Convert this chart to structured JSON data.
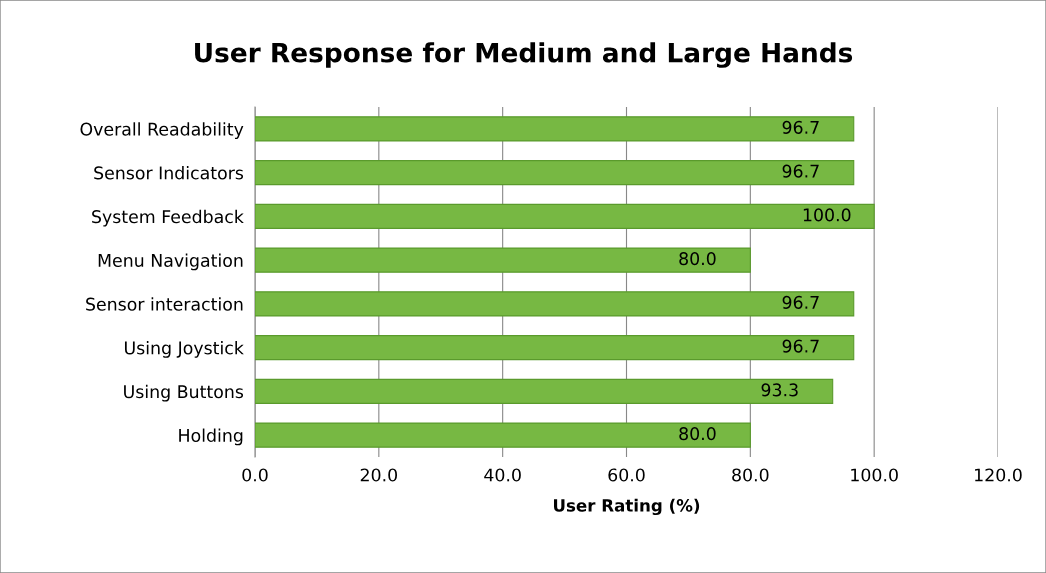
{
  "chart_data": {
    "type": "bar",
    "orientation": "horizontal",
    "title": "User Response for Medium and Large Hands",
    "xlabel": "User Rating (%)",
    "categories": [
      "Overall Readability",
      "Sensor Indicators",
      "System Feedback",
      "Menu Navigation",
      "Sensor interaction",
      "Using Joystick",
      "Using Buttons",
      "Holding"
    ],
    "values": [
      96.7,
      96.7,
      100,
      80,
      96.7,
      96.7,
      93.3,
      80
    ],
    "value_labels": [
      "96.7",
      "96.7",
      "100.0",
      "80.0",
      "96.7",
      "96.7",
      "93.3",
      "80.0"
    ],
    "color": "#77b843",
    "xlim": [
      0,
      120
    ],
    "xticks": [
      {
        "value": 0,
        "label": "0.0"
      },
      {
        "value": 20,
        "label": "20.0"
      },
      {
        "value": 40,
        "label": "40.0"
      },
      {
        "value": 60,
        "label": "60.0"
      },
      {
        "value": 80,
        "label": "80.0"
      },
      {
        "value": 100,
        "label": "100.0"
      },
      {
        "value": 120,
        "label": "120.0"
      }
    ],
    "grid": "x",
    "legend": false
  }
}
